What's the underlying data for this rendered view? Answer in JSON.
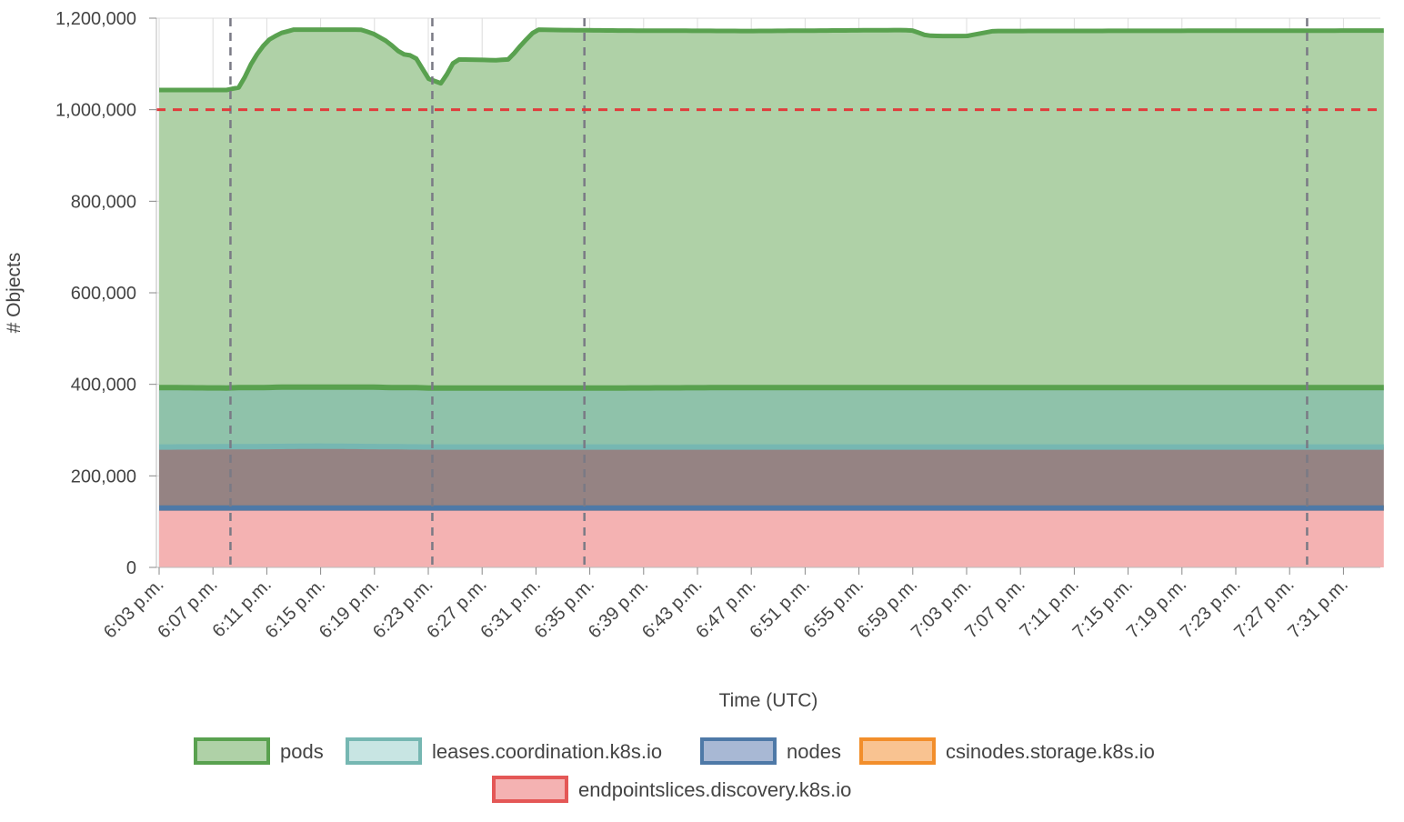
{
  "chart_data": {
    "type": "area",
    "stacked": true,
    "xlabel": "Time (UTC)",
    "ylabel": "# Objects",
    "ylim": [
      0,
      1200000
    ],
    "y_ticks": [
      "0",
      "200,000",
      "400,000",
      "600,000",
      "800,000",
      "1,000,000",
      "1,200,000"
    ],
    "y_tick_values": [
      0,
      200000,
      400000,
      600000,
      800000,
      1000000,
      1200000
    ],
    "x_range_minutes": [
      0,
      91
    ],
    "x_ticks": [
      "6:03 p.m.",
      "6:07 p.m.",
      "6:11 p.m.",
      "6:15 p.m.",
      "6:19 p.m.",
      "6:23 p.m.",
      "6:27 p.m.",
      "6:31 p.m.",
      "6:35 p.m.",
      "6:39 p.m.",
      "6:43 p.m.",
      "6:47 p.m.",
      "6:51 p.m.",
      "6:55 p.m.",
      "6:59 p.m.",
      "7:03 p.m.",
      "7:07 p.m.",
      "7:11 p.m.",
      "7:15 p.m.",
      "7:19 p.m.",
      "7:23 p.m.",
      "7:27 p.m.",
      "7:31 p.m."
    ],
    "x_tick_minutes": [
      0,
      4,
      8,
      12,
      16,
      20,
      24,
      28,
      32,
      36,
      40,
      44,
      48,
      52,
      56,
      60,
      64,
      68,
      72,
      76,
      80,
      84,
      88
    ],
    "grid": true,
    "threshold": {
      "value": 1000000,
      "color": "#e03c3c",
      "style": "dashed"
    },
    "event_markers_minutes": [
      5.3,
      20.3,
      31.6,
      85.3
    ],
    "legend_position": "bottom-center",
    "series": [
      {
        "name": "endpointslices.discovery.k8s.io",
        "stroke": "#e45756",
        "fill": "#f4b2b2",
        "minutes": [
          0,
          91
        ],
        "totals": [
          0,
          0
        ]
      },
      {
        "name": "csinodes.storage.k8s.io",
        "stroke": "#f28e2b",
        "fill": "#d59c72",
        "minutes": [
          0,
          91
        ],
        "totals": [
          130000,
          130000
        ]
      },
      {
        "name": "nodes",
        "stroke": "#4e79a7",
        "fill": "#958383",
        "minutes": [
          0,
          91
        ],
        "totals": [
          130000,
          130000
        ]
      },
      {
        "name": "leases.coordination.k8s.io",
        "stroke": "#76b7b2",
        "fill": "#8fc2aa",
        "minutes": [
          0,
          8,
          12,
          16,
          20,
          91
        ],
        "totals": [
          263000,
          264000,
          265000,
          264000,
          263000,
          263000
        ]
      },
      {
        "name": "pods",
        "stroke": "#59a14f",
        "fill": "#afd1a7",
        "minutes": [
          0,
          5,
          6,
          7,
          8,
          9,
          10,
          11,
          12,
          13,
          14,
          15,
          16,
          17,
          18,
          19,
          20,
          21,
          22,
          24,
          25,
          26,
          27,
          28,
          30,
          34,
          44,
          55,
          56,
          57,
          58,
          60,
          62,
          91
        ],
        "totals": [
          393000,
          392000,
          393000,
          393000,
          393000,
          394000,
          394000,
          394000,
          394000,
          394000,
          394000,
          394000,
          394000,
          393000,
          393000,
          393000,
          392000,
          392000,
          392000,
          392000,
          392000,
          392000,
          392000,
          392000,
          392000,
          392000,
          393000,
          393000,
          393000,
          393000,
          393000,
          393000,
          393000,
          393000
        ]
      }
    ],
    "top_line": {
      "minutes": [
        0,
        5,
        6,
        7,
        8,
        9,
        10,
        11,
        12,
        13,
        14,
        15,
        16,
        17,
        18,
        19,
        20,
        21,
        22,
        24,
        25,
        26,
        27,
        28,
        30,
        34,
        44,
        55,
        56,
        57,
        58,
        60,
        62,
        91
      ],
      "totals": [
        1043000,
        1043000,
        1049000,
        1110000,
        1150000,
        1167000,
        1175000,
        1175000,
        1175000,
        1175000,
        1175000,
        1175000,
        1165000,
        1148000,
        1122000,
        1117000,
        1068000,
        1057000,
        1110000,
        1109000,
        1108000,
        1110000,
        1145000,
        1175000,
        1174000,
        1173000,
        1172000,
        1174000,
        1173000,
        1162000,
        1161000,
        1161000,
        1172000,
        1173000
      ]
    }
  }
}
